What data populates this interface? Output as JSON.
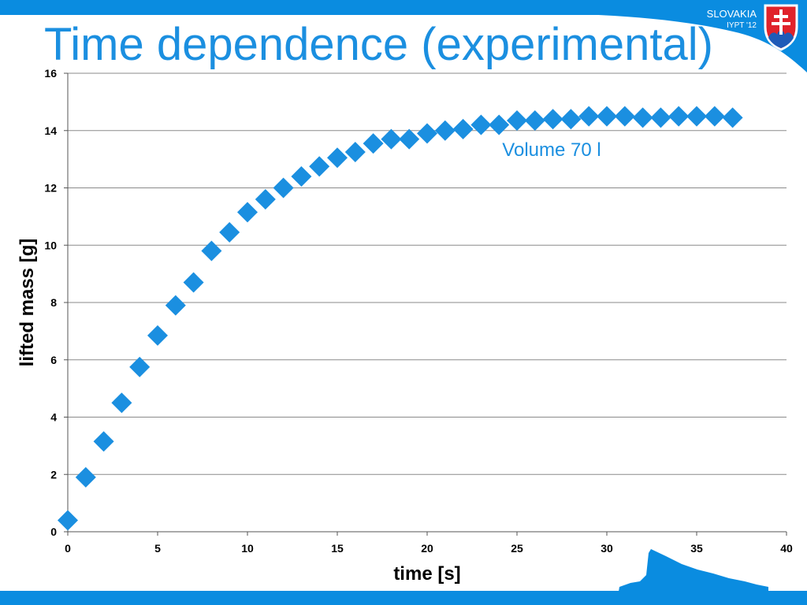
{
  "slide": {
    "title": "Time dependence (experimental)",
    "brand_country": "SLOVAKIA",
    "brand_event": "IYPT '12"
  },
  "colors": {
    "accent": "#1b8fe0",
    "band": "#0a8ce0",
    "gridline": "#8a8a8a",
    "crest_red": "#e0232b",
    "crest_blue": "#1f5bb8"
  },
  "icons": {
    "crest": "slovak-coat-of-arms-icon",
    "mountain": "mountain-silhouette-icon"
  },
  "chart_data": {
    "type": "scatter",
    "xlabel": "time [s]",
    "ylabel": "lifted mass [g]",
    "xlim": [
      0,
      40
    ],
    "ylim": [
      0,
      16
    ],
    "x_ticks": [
      0,
      5,
      10,
      15,
      20,
      25,
      30,
      35,
      40
    ],
    "y_ticks": [
      0,
      2,
      4,
      6,
      8,
      10,
      12,
      14,
      16
    ],
    "grid": "horizontal",
    "marker": "diamond",
    "annotation": "Volume 70 l",
    "series": [
      {
        "x": [
          0,
          1,
          2,
          3,
          4,
          5,
          6,
          7,
          8,
          9,
          10,
          11,
          12,
          13,
          14,
          15,
          16,
          17,
          18,
          19,
          20,
          21,
          22,
          23,
          24,
          25,
          26,
          27,
          28,
          29,
          30,
          31,
          32,
          33,
          34,
          35,
          36,
          37
        ],
        "y": [
          0.4,
          1.9,
          3.15,
          4.5,
          5.75,
          6.85,
          7.9,
          8.7,
          9.8,
          10.45,
          11.15,
          11.6,
          12.0,
          12.4,
          12.75,
          13.05,
          13.25,
          13.55,
          13.7,
          13.7,
          13.9,
          14.0,
          14.05,
          14.2,
          14.2,
          14.35,
          14.35,
          14.4,
          14.4,
          14.5,
          14.5,
          14.5,
          14.45,
          14.45,
          14.5,
          14.5,
          14.5,
          14.45
        ]
      }
    ]
  }
}
